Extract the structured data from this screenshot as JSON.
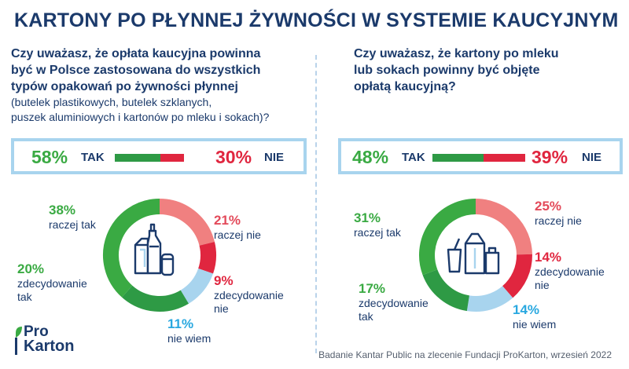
{
  "title": "KARTONY PO PŁYNNEJ ŻYWNOŚCI W SYSTEMIE KAUCYJNYM",
  "colors": {
    "navy": "#1b3a6b",
    "green_dark": "#2e9a45",
    "green": "#3aaa43",
    "pink": "#f08080",
    "red": "#e0263f",
    "light_blue": "#a8d4ee",
    "blue_text": "#29a8e0"
  },
  "left": {
    "question_lines": [
      "Czy uważasz, że opłata kaucyjna powinna",
      "być w Polsce zastosowana do wszystkich",
      "typów opakowań po żywności płynnej"
    ],
    "question_sub_lines": [
      "(butelek plastikowych, butelek szklanych,",
      "puszek aluminiowych i kartonów po mleku i sokach)?"
    ],
    "summary": {
      "yes_pct": "58%",
      "yes_label": "TAK",
      "no_pct": "30%",
      "no_label": "NIE",
      "yes_value": 58,
      "no_value": 30
    },
    "icon": "bottles-cartons-can-icon",
    "segments": [
      {
        "pct": "38%",
        "label": "raczej tak"
      },
      {
        "pct": "21%",
        "label": "raczej nie"
      },
      {
        "pct": "9%",
        "label": "zdecydowanie nie"
      },
      {
        "pct": "11%",
        "label": "nie wiem"
      },
      {
        "pct": "20%",
        "label": "zdecydowanie tak"
      }
    ]
  },
  "right": {
    "question_lines": [
      "Czy uważasz, że kartony po mleku",
      "lub sokach powinny być objęte",
      "opłatą kaucyjną?"
    ],
    "summary": {
      "yes_pct": "48%",
      "yes_label": "TAK",
      "no_pct": "39%",
      "no_label": "NIE",
      "yes_value": 48,
      "no_value": 39
    },
    "icon": "cartons-icon",
    "segments": [
      {
        "pct": "31%",
        "label": "raczej tak"
      },
      {
        "pct": "25%",
        "label": "raczej nie"
      },
      {
        "pct": "14%",
        "label": "zdecydowanie nie"
      },
      {
        "pct": "14%",
        "label": "nie wiem"
      },
      {
        "pct": "17%",
        "label": "zdecydowanie tak"
      }
    ]
  },
  "chart_data": [
    {
      "type": "pie",
      "categories": [
        "raczej tak",
        "raczej nie",
        "zdecydowanie nie",
        "nie wiem",
        "zdecydowanie tak"
      ],
      "values": [
        38,
        21,
        9,
        11,
        20
      ],
      "colors": [
        "#3aaa43",
        "#f08080",
        "#e0263f",
        "#a8d4ee",
        "#2e9a45"
      ]
    },
    {
      "type": "pie",
      "categories": [
        "raczej tak",
        "raczej nie",
        "zdecydowanie nie",
        "nie wiem",
        "zdecydowanie tak"
      ],
      "values": [
        31,
        25,
        14,
        14,
        17
      ],
      "colors": [
        "#3aaa43",
        "#f08080",
        "#e0263f",
        "#a8d4ee",
        "#2e9a45"
      ]
    }
  ],
  "logo": {
    "line1": "Pro",
    "line2": "Karton"
  },
  "source": "Badanie Kantar Public na zlecenie Fundacji ProKarton, wrzesień 2022"
}
